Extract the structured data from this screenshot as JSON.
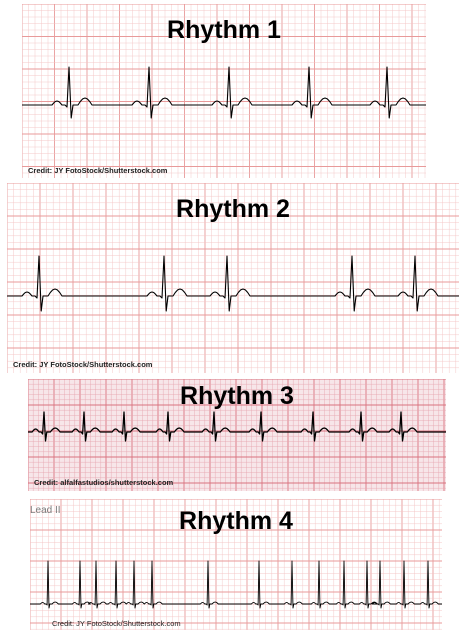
{
  "colors": {
    "grid_minor": "#f4c4c4",
    "grid_major": "#e89a9a",
    "grid_minor_3": "#e7a7b1",
    "grid_major_3": "#d9737f",
    "paper_3": "#f7e6e9",
    "trace": "#000000"
  },
  "rhythms": [
    {
      "title": "Rhythm 1",
      "credit": "Credit: JY FotoStock/Shutterstock.com",
      "lead": ""
    },
    {
      "title": "Rhythm 2",
      "credit": "Credit: JY FotoStock/Shutterstock.com",
      "lead": ""
    },
    {
      "title": "Rhythm 3",
      "credit": "Credit: alfalfastudios/shutterstock.com",
      "lead": ""
    },
    {
      "title": "Rhythm 4",
      "credit": "Credit:  JY FotoStock/Shutterstock.com",
      "lead": "Lead II"
    }
  ]
}
